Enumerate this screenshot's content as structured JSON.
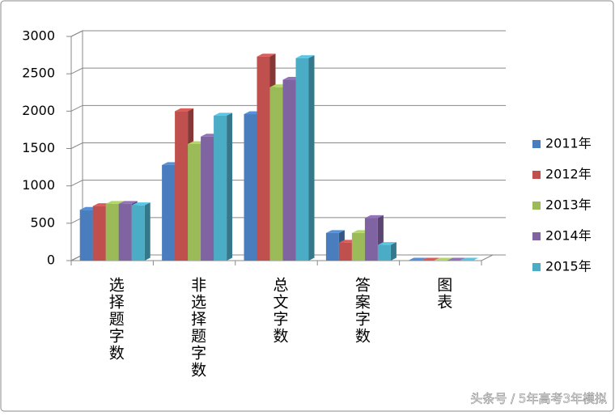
{
  "chart_data": {
    "type": "bar3d",
    "categories": [
      "选择题字数",
      "非选择题字数",
      "总文字数",
      "答案字数",
      "图表"
    ],
    "series": [
      {
        "name": "2011年",
        "color": "#4a7dbd",
        "values": [
          680,
          1280,
          1960,
          370,
          0
        ]
      },
      {
        "name": "2012年",
        "color": "#c0504d",
        "values": [
          730,
          2000,
          2730,
          240,
          0
        ]
      },
      {
        "name": "2013年",
        "color": "#9bbb59",
        "values": [
          760,
          1560,
          2320,
          370,
          0
        ]
      },
      {
        "name": "2014年",
        "color": "#8064a2",
        "values": [
          760,
          1660,
          2420,
          570,
          0
        ]
      },
      {
        "name": "2015年",
        "color": "#4bacc6",
        "values": [
          740,
          1940,
          2710,
          210,
          0
        ]
      }
    ],
    "ylim": [
      0,
      3000
    ],
    "yticks": [
      0,
      500,
      1000,
      1500,
      2000,
      2500,
      3000
    ],
    "grid": true,
    "legend": "right",
    "watermark": "头条号 / 5年高考3年模拟"
  }
}
